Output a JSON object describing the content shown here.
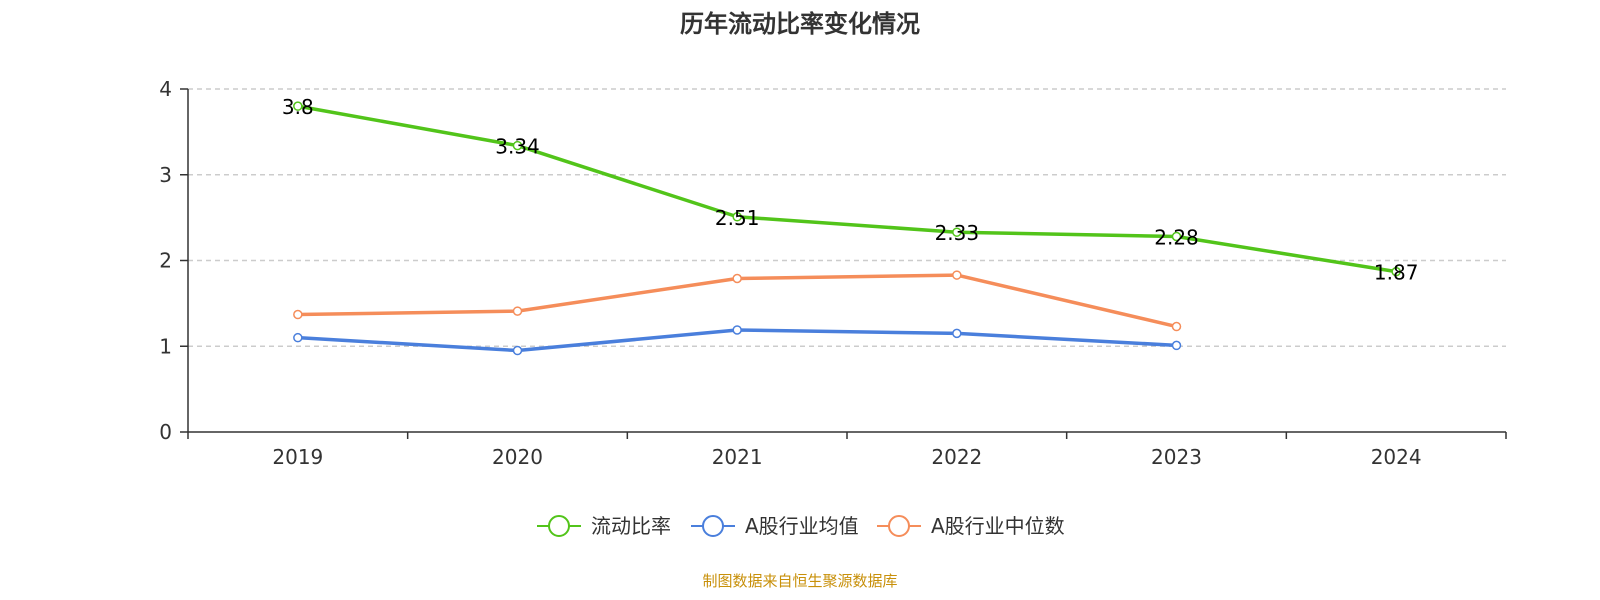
{
  "source_note": "制图数据来自恒生聚源数据库",
  "colors": {
    "axis": "#333333",
    "grid": "#cccccc",
    "source": "#c8900a"
  },
  "chart_data": {
    "type": "line",
    "title": "历年流动比率变化情况",
    "xlabel": "",
    "ylabel": "",
    "categories": [
      "2019",
      "2020",
      "2021",
      "2022",
      "2023",
      "2024"
    ],
    "ylim": [
      0,
      4
    ],
    "yticks": [
      0,
      1,
      2,
      3,
      4
    ],
    "grid": true,
    "legend_position": "bottom",
    "series": [
      {
        "name": "流动比率",
        "color": "#52c41a",
        "values": [
          3.8,
          3.34,
          2.51,
          2.33,
          2.28,
          1.87
        ],
        "labels": [
          "3.8",
          "3.34",
          "2.51",
          "2.33",
          "2.28",
          "1.87"
        ]
      },
      {
        "name": "A股行业均值",
        "color": "#4a7fdc",
        "values": [
          1.1,
          0.95,
          1.19,
          1.15,
          1.01,
          null
        ]
      },
      {
        "name": "A股行业中位数",
        "color": "#f58d5a",
        "values": [
          1.37,
          1.41,
          1.79,
          1.83,
          1.23,
          null
        ]
      }
    ]
  }
}
